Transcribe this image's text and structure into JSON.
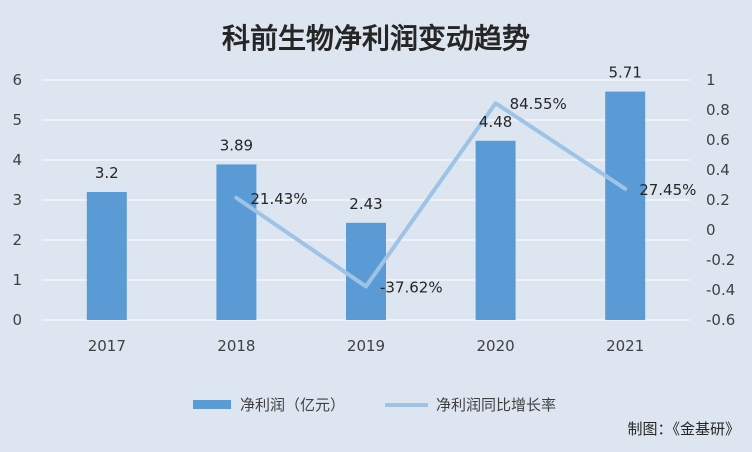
{
  "chart_data": {
    "type": "bar",
    "title": "科前生物净利润变动趋势",
    "categories": [
      "2017",
      "2018",
      "2019",
      "2020",
      "2021"
    ],
    "series": [
      {
        "name": "净利润（亿元）",
        "type": "bar",
        "axis": "left",
        "values": [
          3.2,
          3.89,
          2.43,
          4.48,
          5.71
        ],
        "labels": [
          "3.2",
          "3.89",
          "2.43",
          "4.48",
          "5.71"
        ],
        "color": "#5b9bd5"
      },
      {
        "name": "净利润同比增长率",
        "type": "line",
        "axis": "right",
        "values": [
          null,
          0.2143,
          -0.3762,
          0.8455,
          0.2745
        ],
        "labels": [
          "",
          "21.43%",
          "-37.62%",
          "84.55%",
          "27.45%"
        ],
        "color": "#9dc3e6"
      }
    ],
    "y_left": {
      "min": 0,
      "max": 6,
      "ticks": [
        0,
        1,
        2,
        3,
        4,
        5,
        6
      ],
      "tick_labels": [
        "0",
        "1",
        "2",
        "3",
        "4",
        "5",
        "6"
      ]
    },
    "y_right": {
      "min": -0.6,
      "max": 1.0,
      "ticks": [
        -0.6,
        -0.4,
        -0.2,
        0,
        0.2,
        0.4,
        0.6,
        0.8,
        1.0
      ],
      "tick_labels": [
        "-0.6",
        "-0.4",
        "-0.2",
        "0",
        "0.2",
        "0.4",
        "0.6",
        "0.8",
        "1"
      ]
    },
    "grid": true,
    "legend_position": "bottom",
    "background": "#dde6f0",
    "gridline_color": "#ffffff"
  },
  "credit": "制图：《金基研》"
}
